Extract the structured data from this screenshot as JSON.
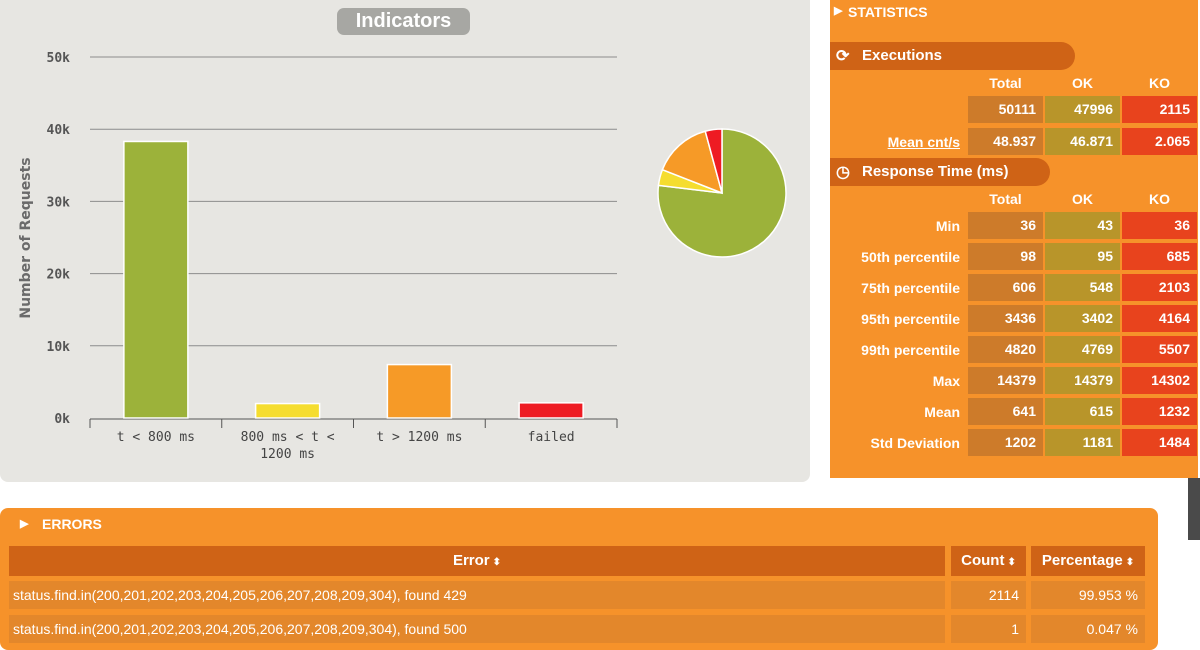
{
  "indicators": {
    "title": "Indicators",
    "ylabel": "Number of Requests"
  },
  "chart_data": [
    {
      "type": "bar",
      "title": "Indicators",
      "ylabel": "Number of Requests",
      "categories": [
        "t < 800 ms",
        "800 ms < t < 1200 ms",
        "t > 1200 ms",
        "failed"
      ],
      "values": [
        38300,
        2000,
        7400,
        2100
      ],
      "colors": [
        "#9cb23a",
        "#f5dd2f",
        "#f69a27",
        "#ee1b23"
      ],
      "yticks": [
        "0k",
        "10k",
        "20k",
        "30k",
        "40k",
        "50k"
      ],
      "ylim": [
        0,
        50000
      ],
      "grid": true
    },
    {
      "type": "pie",
      "categories": [
        "t < 800 ms",
        "800 ms < t < 1200 ms",
        "t > 1200 ms",
        "failed"
      ],
      "values": [
        38300,
        2000,
        7400,
        2100
      ],
      "colors": [
        "#9cb23a",
        "#f5dd2f",
        "#f69a27",
        "#ee1b23"
      ]
    }
  ],
  "statistics": {
    "header": "STATISTICS",
    "executions": {
      "title": "Executions",
      "cols": [
        "Total",
        "OK",
        "KO"
      ],
      "rows": [
        {
          "label": "",
          "total": "50111",
          "ok": "47996",
          "ko": "2115"
        },
        {
          "label": "Mean cnt/s",
          "total": "48.937",
          "ok": "46.871",
          "ko": "2.065"
        }
      ]
    },
    "response_time": {
      "title": "Response Time (ms)",
      "cols": [
        "Total",
        "OK",
        "KO"
      ],
      "rows": [
        {
          "label": "Min",
          "total": "36",
          "ok": "43",
          "ko": "36"
        },
        {
          "label": "50th percentile",
          "total": "98",
          "ok": "95",
          "ko": "685"
        },
        {
          "label": "75th percentile",
          "total": "606",
          "ok": "548",
          "ko": "2103"
        },
        {
          "label": "95th percentile",
          "total": "3436",
          "ok": "3402",
          "ko": "4164"
        },
        {
          "label": "99th percentile",
          "total": "4820",
          "ok": "4769",
          "ko": "5507"
        },
        {
          "label": "Max",
          "total": "14379",
          "ok": "14379",
          "ko": "14302"
        },
        {
          "label": "Mean",
          "total": "641",
          "ok": "615",
          "ko": "1232"
        },
        {
          "label": "Std Deviation",
          "total": "1202",
          "ok": "1181",
          "ko": "1484"
        }
      ]
    }
  },
  "errors": {
    "header": "ERRORS",
    "cols": {
      "error": "Error",
      "count": "Count",
      "percentage": "Percentage"
    },
    "rows": [
      {
        "error": "status.find.in(200,201,202,203,204,205,206,207,208,209,304), found 429",
        "count": "2114",
        "percentage": "99.953 %"
      },
      {
        "error": "status.find.in(200,201,202,203,204,205,206,207,208,209,304), found 500",
        "count": "1",
        "percentage": "0.047 %"
      }
    ]
  },
  "colors": {
    "panel_orange": "#f6922a",
    "bar_dark_orange": "#cf6316",
    "total_cell": "#cd7b2a",
    "ok_cell": "#b8952a",
    "ko_cell": "#e8431d"
  }
}
